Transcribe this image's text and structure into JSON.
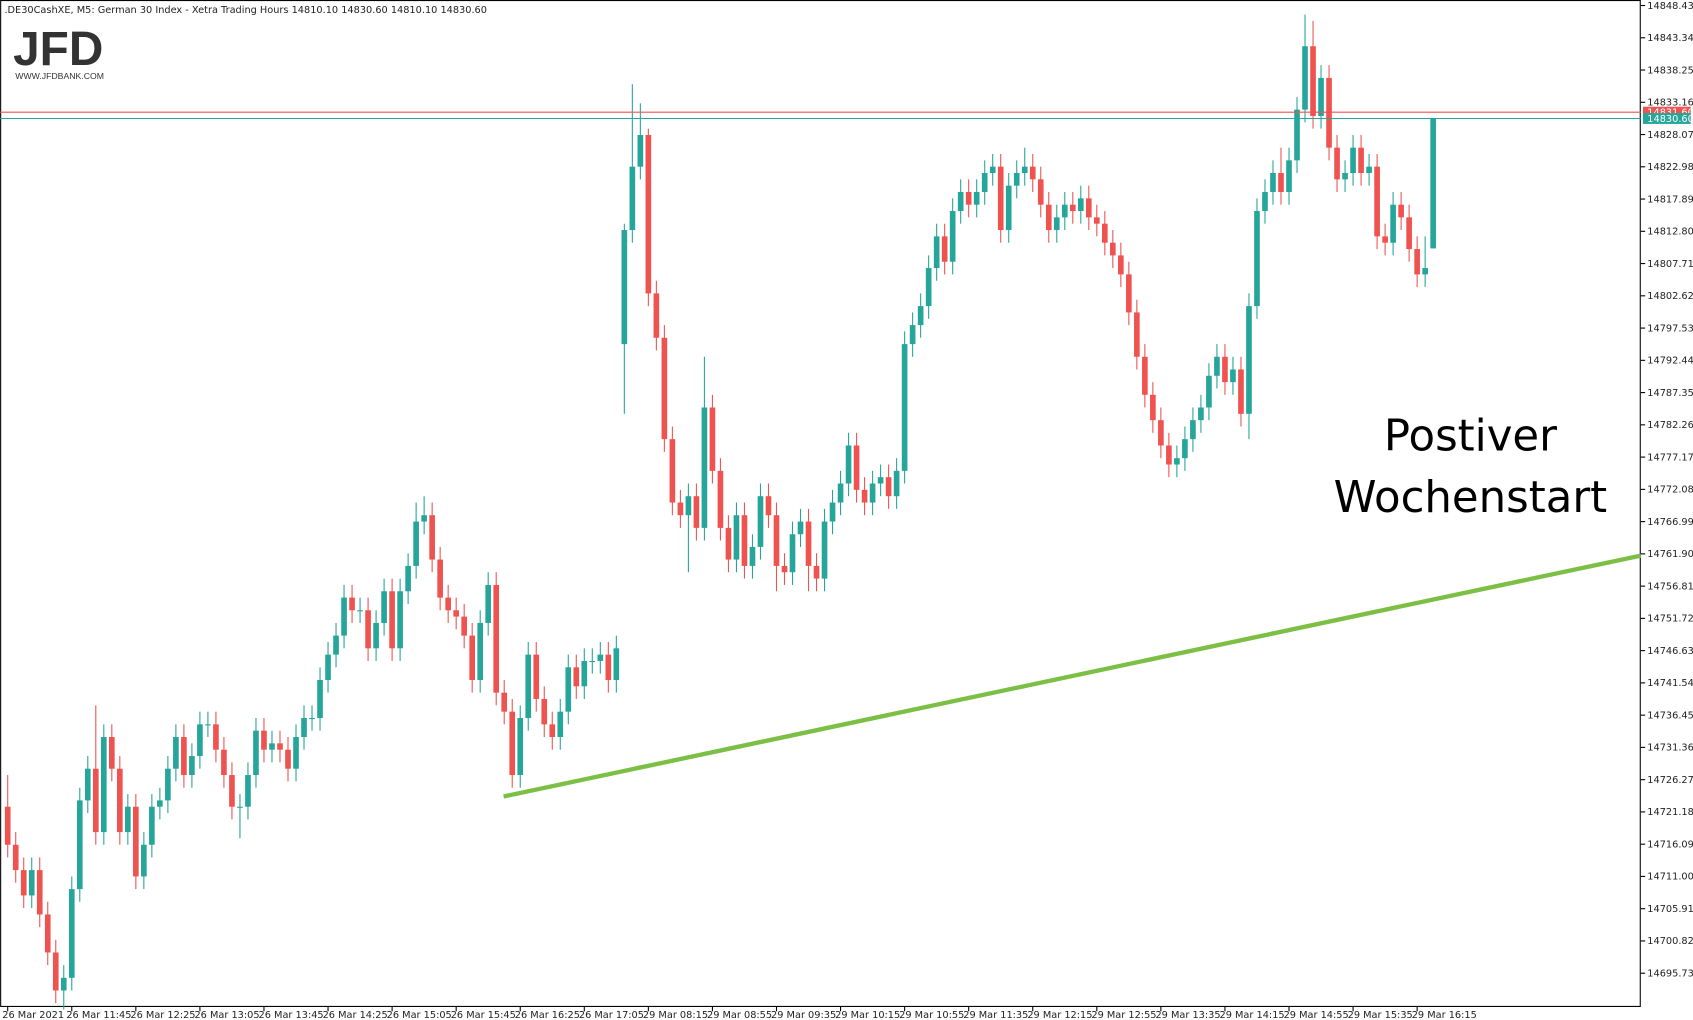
{
  "chart_data": {
    "type": "candlestick",
    "title": ".DE30CashXE, M5:  German 30 Index  - Xetra Trading Hours  14810.10 14830.60 14810.10 14830.60",
    "logo": {
      "text": "JFD",
      "url": "WWW.JFDBANK.COM"
    },
    "annotation": [
      "Postiver",
      "Wochenstart"
    ],
    "up_color": "#26a69a",
    "down_color": "#ef5350",
    "trend_color": "#7cbf45",
    "grid": false,
    "ylim": [
      14690.4,
      14849.3
    ],
    "yticks": [
      14848.43,
      14843.34,
      14838.25,
      14833.16,
      14828.07,
      14822.98,
      14817.89,
      {
        "value": 14812.8,
        "label": "14812.80"
      },
      14807.71,
      14802.62,
      14797.53,
      14792.44,
      14787.35,
      14782.26,
      14777.17,
      14772.08,
      14766.99,
      {
        "value": 14761.9,
        "label": "14761.90"
      },
      14756.81,
      14751.72,
      14746.63,
      14741.54,
      14736.45,
      14731.36,
      14726.27,
      14721.18,
      14716.09,
      {
        "value": 14711,
        "label": "14711.00"
      },
      14705.91,
      {
        "value": 14700.82,
        "label": "14700.82"
      },
      14695.73
    ],
    "price_lines": [
      {
        "value": 14831.6,
        "label": "14831.60",
        "color": "#ef5350"
      },
      {
        "value": 14830.6,
        "label": "14830.60",
        "color": "#26a69a"
      }
    ],
    "categories": [
      "26 Mar 2021",
      null,
      null,
      null,
      null,
      null,
      null,
      null,
      "26 Mar 11:45",
      null,
      null,
      null,
      null,
      null,
      null,
      null,
      "26 Mar 12:25",
      null,
      null,
      null,
      null,
      null,
      null,
      null,
      "26 Mar 13:05",
      null,
      null,
      null,
      null,
      null,
      null,
      null,
      "26 Mar 13:45",
      null,
      null,
      null,
      null,
      null,
      null,
      null,
      "26 Mar 14:25",
      null,
      null,
      null,
      null,
      null,
      null,
      null,
      "26 Mar 15:05",
      null,
      null,
      null,
      null,
      null,
      null,
      null,
      "26 Mar 15:45",
      null,
      null,
      null,
      null,
      null,
      null,
      null,
      "26 Mar 16:25",
      null,
      null,
      null,
      null,
      null,
      null,
      null,
      "26 Mar 17:05",
      null,
      null,
      null,
      null,
      null,
      null,
      null,
      "29 Mar 08:15",
      null,
      null,
      null,
      null,
      null,
      null,
      null,
      "29 Mar 08:55",
      null,
      null,
      null,
      null,
      null,
      null,
      null,
      "29 Mar 09:35",
      null,
      null,
      null,
      null,
      null,
      null,
      null,
      "29 Mar 10:15",
      null,
      null,
      null,
      null,
      null,
      null,
      null,
      "29 Mar 10:55",
      null,
      null,
      null,
      null,
      null,
      null,
      null,
      "29 Mar 11:35",
      null,
      null,
      null,
      null,
      null,
      null,
      null,
      "29 Mar 12:15",
      null,
      null,
      null,
      null,
      null,
      null,
      null,
      "29 Mar 12:55",
      null,
      null,
      null,
      null,
      null,
      null,
      null,
      "29 Mar 13:35",
      null,
      null,
      null,
      null,
      null,
      null,
      null,
      "29 Mar 14:15",
      null,
      null,
      null,
      null,
      null,
      null,
      null,
      "29 Mar 14:55",
      null,
      null,
      null,
      null,
      null,
      null,
      null,
      "29 Mar 15:35",
      null,
      null,
      null,
      null,
      null,
      null,
      null,
      "29 Mar 16:15",
      null,
      null
    ],
    "open": [
      14722,
      14716,
      14712,
      14708,
      14712,
      14705,
      14699,
      14693,
      14695,
      14709,
      14723,
      14728,
      14718,
      14733,
      14728,
      14718,
      14722,
      14711,
      14716,
      14722,
      14723,
      14728,
      14733,
      14727,
      14730,
      14735,
      14735,
      14731,
      14727,
      14722,
      14722,
      14727,
      14734,
      14731,
      14732,
      14731,
      14728,
      14733,
      14736,
      14736,
      14742,
      14746,
      14749,
      14755,
      14753,
      14753,
      14747,
      14751,
      14756,
      14747,
      14756,
      14760,
      14767,
      14768,
      14761,
      14755,
      14753,
      14752,
      14749,
      14742,
      14751,
      14757,
      14740,
      14737,
      14727,
      14736,
      14746,
      14739,
      14735,
      14733,
      14737,
      14744,
      14741,
      14745,
      14745,
      14746,
      14742,
      14795,
      14813,
      14823,
      14828,
      14803,
      14796,
      14780,
      14770,
      14768,
      14771,
      14766,
      14785,
      14775,
      14766,
      14761,
      14768,
      14760,
      14763,
      14771,
      14768,
      14760,
      14759,
      14765,
      14767,
      14760,
      14758,
      14767,
      14770,
      14773,
      14779,
      14772,
      14770,
      14773,
      14774,
      14771,
      14775,
      14795,
      14798,
      14801,
      14807,
      14812,
      14808,
      14816,
      14819,
      14817,
      14819,
      14822,
      14823,
      14813,
      14820,
      14822,
      14823,
      14821,
      14817,
      14813,
      14815,
      14817,
      14816,
      14818,
      14815,
      14814,
      14811,
      14809,
      14806,
      14800,
      14793,
      14787,
      14783,
      14779,
      14776,
      14777,
      14780,
      14783,
      14785,
      14790,
      14793,
      14789,
      14791,
      14784,
      14801,
      14816,
      14819,
      14822,
      14819,
      14824,
      14832,
      14842,
      14831,
      14837,
      14826,
      14821,
      14822,
      14826,
      14822,
      14823,
      14812,
      14811,
      14817,
      14815,
      14810,
      14806,
      14810.1
    ],
    "high": [
      14727,
      14718,
      14714,
      14714,
      14714,
      14707,
      14701,
      14697,
      14711,
      14725,
      14730,
      14738,
      14735,
      14735,
      14730,
      14724,
      14724,
      14718,
      14724,
      14725,
      14730,
      14735,
      14735,
      14732,
      14737,
      14737,
      14737,
      14733,
      14729,
      14724,
      14729,
      14736,
      14736,
      14734,
      14734,
      14733,
      14735,
      14738,
      14738,
      14744,
      14748,
      14751,
      14757,
      14757,
      14755,
      14755,
      14753,
      14758,
      14758,
      14758,
      14762,
      14770,
      14771,
      14770,
      14763,
      14757,
      14755,
      14754,
      14751,
      14753,
      14759,
      14759,
      14742,
      14739,
      14738,
      14748,
      14748,
      14741,
      14737,
      14739,
      14746,
      14746,
      14747,
      14747,
      14748,
      14748,
      14749,
      14814,
      14836,
      14833,
      14829,
      14805,
      14798,
      14782,
      14772,
      14773,
      14773,
      14793,
      14787,
      14777,
      14768,
      14770,
      14770,
      14765,
      14773,
      14773,
      14770,
      14762,
      14767,
      14769,
      14769,
      14762,
      14769,
      14772,
      14775,
      14781,
      14781,
      14774,
      14775,
      14776,
      14776,
      14777,
      14797,
      14800,
      14803,
      14809,
      14814,
      14814,
      14818,
      14821,
      14821,
      14821,
      14824,
      14825,
      14825,
      14822,
      14824,
      14826,
      14825,
      14823,
      14819,
      14817,
      14819,
      14819,
      14820,
      14820,
      14817,
      14816,
      14813,
      14811,
      14808,
      14802,
      14795,
      14789,
      14785,
      14781,
      14779,
      14782,
      14785,
      14787,
      14792,
      14795,
      14795,
      14793,
      14793,
      14803,
      14818,
      14821,
      14824,
      14826,
      14826,
      14834,
      14847,
      14846,
      14839,
      14839,
      14828,
      14824,
      14828,
      14828,
      14825,
      14825,
      14814,
      14819,
      14819,
      14817,
      14812,
      14812,
      14830.6
    ],
    "low": [
      14714,
      14710,
      14706,
      14706,
      14703,
      14697,
      14691,
      14690,
      14693,
      14707,
      14721,
      14716,
      14716,
      14726,
      14716,
      14716,
      14709,
      14709,
      14714,
      14720,
      14721,
      14726,
      14725,
      14725,
      14728,
      14733,
      14729,
      14725,
      14720,
      14717,
      14720,
      14725,
      14729,
      14729,
      14729,
      14726,
      14726,
      14731,
      14734,
      14734,
      14740,
      14744,
      14747,
      14751,
      14751,
      14745,
      14745,
      14749,
      14745,
      14745,
      14754,
      14758,
      14765,
      14759,
      14753,
      14751,
      14750,
      14747,
      14740,
      14740,
      14749,
      14738,
      14735,
      14725,
      14725,
      14734,
      14737,
      14733,
      14731,
      14731,
      14735,
      14739,
      14739,
      14743,
      14743,
      14740,
      14740,
      14784,
      14811,
      14821,
      14801,
      14794,
      14778,
      14768,
      14766,
      14759,
      14764,
      14764,
      14773,
      14764,
      14759,
      14759,
      14758,
      14758,
      14761,
      14766,
      14756,
      14757,
      14757,
      14763,
      14756,
      14756,
      14756,
      14765,
      14768,
      14771,
      14770,
      14768,
      14768,
      14771,
      14769,
      14769,
      14773,
      14793,
      14796,
      14799,
      14805,
      14806,
      14806,
      14814,
      14815,
      14815,
      14817,
      14820,
      14811,
      14811,
      14818,
      14820,
      14819,
      14815,
      14811,
      14811,
      14813,
      14814,
      14814,
      14813,
      14812,
      14809,
      14807,
      14804,
      14798,
      14791,
      14785,
      14781,
      14777,
      14774,
      14774,
      14775,
      14778,
      14781,
      14783,
      14788,
      14787,
      14787,
      14782,
      14780,
      14799,
      14814,
      14817,
      14817,
      14817,
      14822,
      14830,
      14829,
      14829,
      14824,
      14819,
      14819,
      14820,
      14820,
      14820,
      14810,
      14809,
      14809,
      14813,
      14808,
      14804,
      14804,
      14810.1
    ],
    "close": [
      14716,
      14712,
      14708,
      14712,
      14705,
      14699,
      14693,
      14695,
      14709,
      14723,
      14728,
      14718,
      14733,
      14728,
      14718,
      14722,
      14711,
      14716,
      14722,
      14723,
      14728,
      14733,
      14727,
      14730,
      14735,
      14735,
      14731,
      14727,
      14722,
      14722,
      14727,
      14734,
      14731,
      14732,
      14731,
      14728,
      14733,
      14736,
      14736,
      14742,
      14746,
      14749,
      14755,
      14753,
      14753,
      14747,
      14751,
      14756,
      14747,
      14756,
      14760,
      14767,
      14768,
      14761,
      14755,
      14753,
      14752,
      14749,
      14742,
      14751,
      14757,
      14740,
      14737,
      14727,
      14736,
      14746,
      14739,
      14735,
      14733,
      14737,
      14744,
      14741,
      14745,
      14745,
      14746,
      14742,
      14747,
      14813,
      14823,
      14828,
      14803,
      14796,
      14780,
      14770,
      14768,
      14771,
      14766,
      14785,
      14775,
      14766,
      14761,
      14768,
      14760,
      14763,
      14771,
      14768,
      14760,
      14759,
      14765,
      14767,
      14760,
      14758,
      14767,
      14770,
      14773,
      14779,
      14772,
      14770,
      14773,
      14774,
      14771,
      14775,
      14795,
      14798,
      14801,
      14807,
      14812,
      14808,
      14816,
      14819,
      14817,
      14819,
      14822,
      14823,
      14813,
      14820,
      14822,
      14823,
      14821,
      14817,
      14813,
      14815,
      14817,
      14816,
      14818,
      14815,
      14814,
      14811,
      14809,
      14806,
      14800,
      14793,
      14787,
      14783,
      14779,
      14776,
      14777,
      14780,
      14783,
      14785,
      14790,
      14793,
      14789,
      14791,
      14784,
      14801,
      14816,
      14819,
      14822,
      14819,
      14824,
      14832,
      14842,
      14831,
      14837,
      14826,
      14821,
      14822,
      14826,
      14822,
      14823,
      14812,
      14811,
      14817,
      14815,
      14810,
      14806,
      14807,
      14830.6
    ]
  }
}
